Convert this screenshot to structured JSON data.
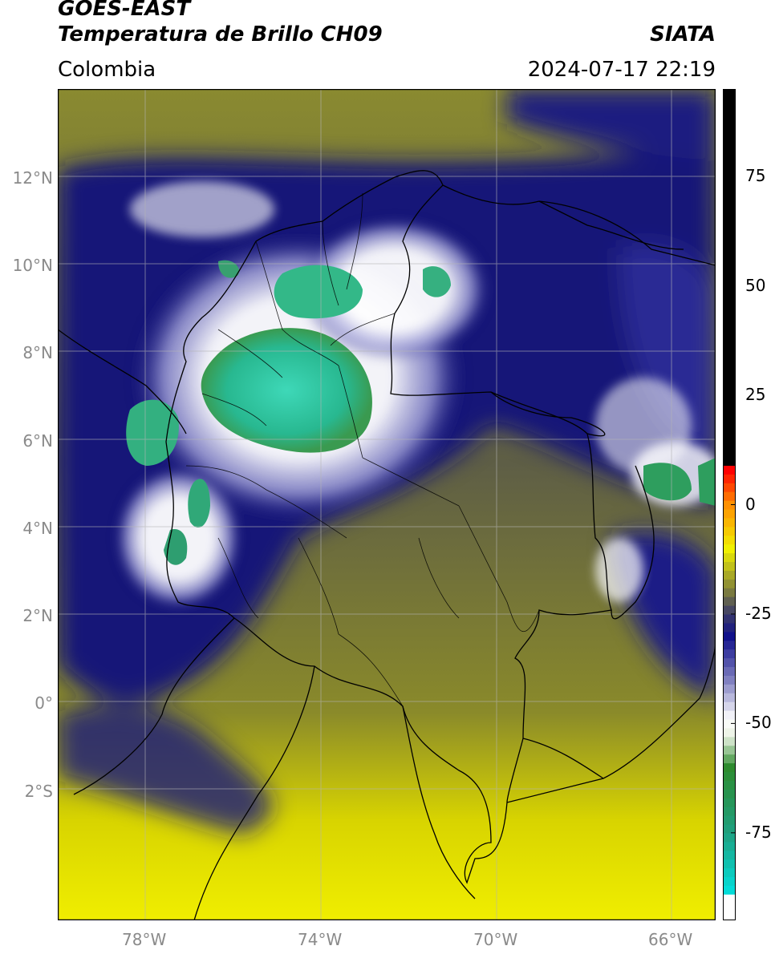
{
  "header": {
    "title_line1": "GOES-EAST",
    "title_line2": "Temperatura de Brillo CH09",
    "region": "Colombia",
    "source": "SIATA",
    "timestamp": "2024-07-17 22:19"
  },
  "map": {
    "lon_range": [
      -80,
      -65
    ],
    "lat_range": [
      -5,
      14
    ],
    "lat_ticks": [
      {
        "value": 12,
        "label": "12°N"
      },
      {
        "value": 10,
        "label": "10°N"
      },
      {
        "value": 8,
        "label": "8°N"
      },
      {
        "value": 6,
        "label": "6°N"
      },
      {
        "value": 4,
        "label": "4°N"
      },
      {
        "value": 2,
        "label": "2°N"
      },
      {
        "value": 0,
        "label": "0°"
      },
      {
        "value": -2,
        "label": "2°S"
      }
    ],
    "lon_ticks": [
      {
        "value": -78,
        "label": "78°W"
      },
      {
        "value": -74,
        "label": "74°W"
      },
      {
        "value": -70,
        "label": "70°W"
      },
      {
        "value": -66,
        "label": "66°W"
      }
    ],
    "gridlines": true
  },
  "colorbar": {
    "range": [
      -95,
      95
    ],
    "ticks": [
      {
        "value": 75,
        "label": "75"
      },
      {
        "value": 50,
        "label": "50"
      },
      {
        "value": 25,
        "label": "25"
      },
      {
        "value": 0,
        "label": "0"
      },
      {
        "value": -25,
        "label": "-25"
      },
      {
        "value": -50,
        "label": "-50"
      },
      {
        "value": -75,
        "label": "-75"
      }
    ],
    "stops": [
      {
        "value": -95,
        "color": "#ffffff"
      },
      {
        "value": -90,
        "color": "#ffffff"
      },
      {
        "value": -89.9,
        "color": "#00e5e5"
      },
      {
        "value": -75,
        "color": "#1fa080"
      },
      {
        "value": -60,
        "color": "#2e8b2e"
      },
      {
        "value": -53,
        "color": "#e8f0e0"
      },
      {
        "value": -49,
        "color": "#ffffff"
      },
      {
        "value": -40,
        "color": "#8080c0"
      },
      {
        "value": -30,
        "color": "#10108a"
      },
      {
        "value": -25,
        "color": "#3a3a6a"
      },
      {
        "value": -20,
        "color": "#7a7a40"
      },
      {
        "value": -10,
        "color": "#f0f000"
      },
      {
        "value": 0,
        "color": "#ff9000"
      },
      {
        "value": 8,
        "color": "#ff0000"
      },
      {
        "value": 8.1,
        "color": "#000000"
      },
      {
        "value": 95,
        "color": "#000000"
      }
    ]
  },
  "colors": {
    "warm_surface": "#d4d000",
    "dry_olive": "#6e6e36",
    "moist_navy": "#141478",
    "cold_white": "#e0e0f0",
    "deep_convection": "#28c8a8",
    "border": "#000000",
    "grid": "#b4b4b4"
  }
}
